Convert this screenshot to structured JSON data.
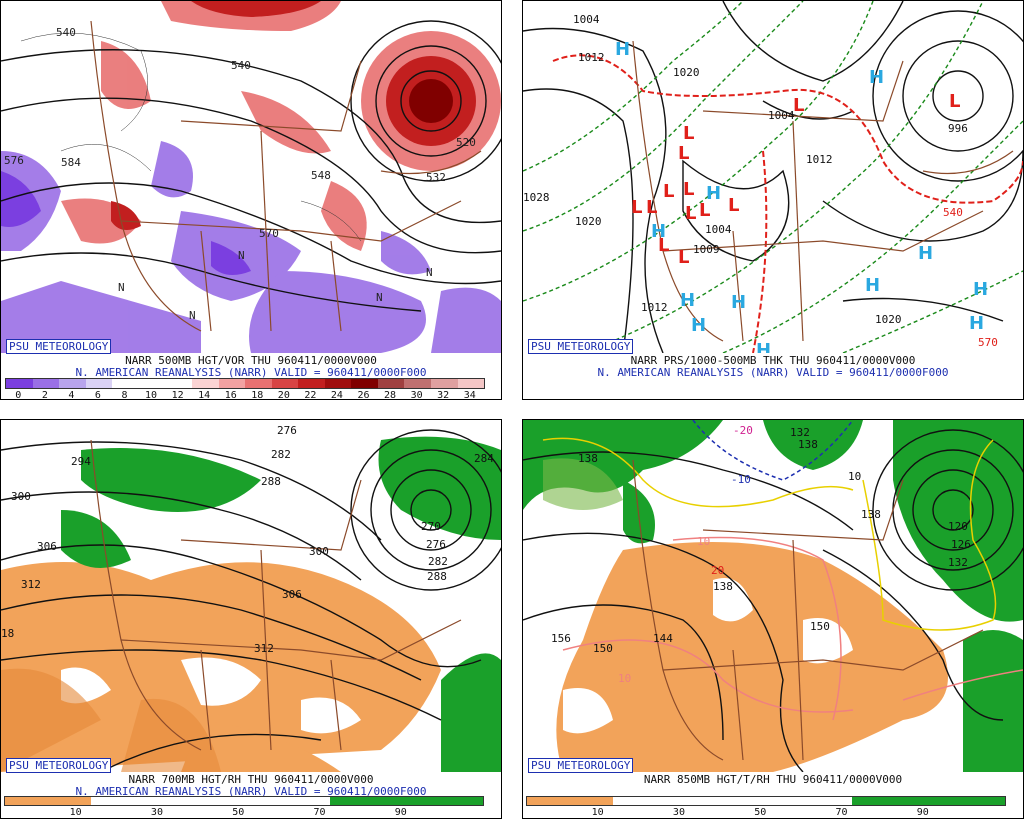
{
  "badge": "PSU METEOROLOGY",
  "panels": {
    "tl": {
      "caption1": "NARR 500MB HGT/VOR THU 960411/0000V000",
      "caption2": "N. AMERICAN REANALYSIS (NARR) VALID = 960411/0000F000",
      "colorbar_ticks": [
        "0",
        "2",
        "4",
        "6",
        "8",
        "10",
        "12",
        "14",
        "16",
        "18",
        "20",
        "22",
        "24",
        "26",
        "28",
        "30",
        "32",
        "34"
      ],
      "colorbar_colors": [
        "#7b3fe0",
        "#9a6fe6",
        "#b8a4ec",
        "#dad2f5",
        "#ffffff",
        "#ffffff",
        "#ffffff",
        "#fbd3d3",
        "#f3a2a2",
        "#e87171",
        "#d84444",
        "#c21f1f",
        "#a00d0d",
        "#800000",
        "#a04040",
        "#c07070",
        "#e0a0a0",
        "#f4c6c6"
      ],
      "labels": [
        "540",
        "540",
        "576",
        "584",
        "570",
        "548",
        "532",
        "520",
        "N",
        "N",
        "N",
        "N",
        "N"
      ]
    },
    "tr": {
      "caption1": "NARR PRS/1000-500MB THK THU 960411/0000V000",
      "caption2": "N. AMERICAN REANALYSIS (NARR) VALID = 960411/0000F000",
      "labels": [
        "1004",
        "1012",
        "1020",
        "1004",
        "1020",
        "1028",
        "1004",
        "1009",
        "1012",
        "1020",
        "1012",
        "996",
        "540",
        "570"
      ]
    },
    "bl": {
      "caption1": "NARR 700MB HGT/RH THU 960411/0000V000",
      "caption2": "N. AMERICAN REANALYSIS (NARR) VALID = 960411/0000F000",
      "colorbar_ticks": [
        "10",
        "30",
        "50",
        "70",
        "90"
      ],
      "labels": [
        "276",
        "282",
        "288",
        "294",
        "300",
        "306",
        "312",
        "300",
        "306",
        "312",
        "270",
        "276",
        "282",
        "288",
        "284",
        "18"
      ]
    },
    "br": {
      "caption1": "NARR 850MB HGT/T/RH THU 960411/0000V000",
      "colorbar_ticks": [
        "10",
        "30",
        "50",
        "70",
        "90"
      ],
      "labels": [
        "-20",
        "-10",
        "10",
        "20",
        "10",
        "138",
        "138",
        "138",
        "144",
        "150",
        "150",
        "156",
        "120",
        "126",
        "132",
        "138",
        "132",
        "10"
      ]
    }
  },
  "colors": {
    "badge_blue": "#1d2fb0",
    "map_brown": "#8b4a2a",
    "rh_orange": "#f2a35a",
    "rh_green": "#1aa02a",
    "low_red": "#e0201a",
    "high_blue": "#2aa8e0"
  }
}
